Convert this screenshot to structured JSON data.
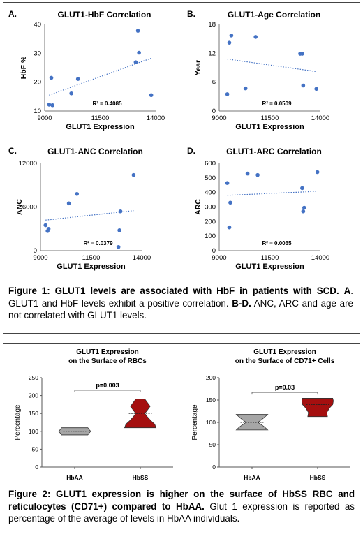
{
  "colors": {
    "scatter_point": "#4472c4",
    "trendline": "#4472c4",
    "hbaa_violin": "#a6a6a6",
    "hbss_violin": "#a50f0f"
  },
  "chart_data": [
    {
      "id": "A",
      "type": "scatter",
      "panel_label": "A.",
      "title": "GLUT1-HbF Correlation",
      "xlabel": "GLUT1 Expression",
      "ylabel": "HbF %",
      "xlim": [
        9000,
        14000
      ],
      "ylim": [
        10,
        40
      ],
      "xticks": [
        9000,
        11500,
        14000
      ],
      "yticks": [
        10,
        20,
        30,
        40
      ],
      "points": [
        [
          9200,
          12.2
        ],
        [
          9300,
          21.5
        ],
        [
          9350,
          12
        ],
        [
          10200,
          16.1
        ],
        [
          10500,
          21.1
        ],
        [
          13100,
          26.9
        ],
        [
          13200,
          37.8
        ],
        [
          13250,
          30.2
        ],
        [
          13800,
          15.5
        ]
      ],
      "trendline": [
        [
          9200,
          15.5
        ],
        [
          13800,
          28.3
        ]
      ],
      "r2_label": "R² = 0.4085"
    },
    {
      "id": "B",
      "type": "scatter",
      "panel_label": "B.",
      "title": "GLUT1-Age Correlation",
      "xlabel": "GLUT1 Expression",
      "ylabel": "Year",
      "xlim": [
        9000,
        14000
      ],
      "ylim": [
        0,
        18
      ],
      "xticks": [
        9000,
        11500,
        14000
      ],
      "yticks": [
        0,
        6,
        12,
        18
      ],
      "points": [
        [
          9400,
          3.5
        ],
        [
          9500,
          14.2
        ],
        [
          9600,
          15.7
        ],
        [
          10300,
          4.7
        ],
        [
          10800,
          15.4
        ],
        [
          13000,
          11.9
        ],
        [
          13100,
          11.9
        ],
        [
          13150,
          5.3
        ],
        [
          13800,
          4.6
        ]
      ],
      "trendline": [
        [
          9400,
          10.8
        ],
        [
          13800,
          8.2
        ]
      ],
      "r2_label": "R² = 0.0509"
    },
    {
      "id": "C",
      "type": "scatter",
      "panel_label": "C.",
      "title": "GLUT1-ANC Correlation",
      "xlabel": "GLUT1 Expression",
      "ylabel": "ANC",
      "xlim": [
        9000,
        14000
      ],
      "ylim": [
        0,
        12000
      ],
      "xticks": [
        9000,
        11500,
        14000
      ],
      "yticks": [
        0,
        6000,
        12000
      ],
      "points": [
        [
          9250,
          3500
        ],
        [
          9350,
          2700
        ],
        [
          9400,
          3000
        ],
        [
          10400,
          6500
        ],
        [
          10800,
          7800
        ],
        [
          12850,
          500
        ],
        [
          12900,
          2800
        ],
        [
          12950,
          5400
        ],
        [
          13600,
          10400
        ]
      ],
      "trendline": [
        [
          9250,
          4200
        ],
        [
          13600,
          5500
        ]
      ],
      "r2_label": "R² = 0.0379"
    },
    {
      "id": "D",
      "type": "scatter",
      "panel_label": "D.",
      "title": "GLUT1-ARC Correlation",
      "xlabel": "GLUT1 Expression",
      "ylabel": "ARC",
      "xlim": [
        9000,
        14000
      ],
      "ylim": [
        0,
        600
      ],
      "xticks": [
        9000,
        11500,
        14000
      ],
      "yticks": [
        0,
        100,
        200,
        300,
        400,
        500,
        600
      ],
      "points": [
        [
          9400,
          465
        ],
        [
          9500,
          160
        ],
        [
          9550,
          330
        ],
        [
          10400,
          530
        ],
        [
          10900,
          520
        ],
        [
          13100,
          430
        ],
        [
          13150,
          270
        ],
        [
          13200,
          295
        ],
        [
          13850,
          540
        ]
      ],
      "trendline": [
        [
          9400,
          380
        ],
        [
          13850,
          408
        ]
      ],
      "r2_label": "R² = 0.0065"
    },
    {
      "id": "E",
      "type": "violin",
      "title_lines": [
        "GLUT1 Expression",
        "on the Surface of RBCs"
      ],
      "ylabel": "Percentage",
      "ylim": [
        0,
        250
      ],
      "yticks": [
        0,
        50,
        100,
        150,
        200,
        250
      ],
      "categories": [
        "HbAA",
        "HbSS"
      ],
      "groups": [
        {
          "name": "HbAA",
          "fill": "#a6a6a6",
          "median": 100,
          "profile": [
            [
              90,
              40
            ],
            [
              95,
              44
            ],
            [
              100,
              49
            ],
            [
              105,
              44
            ],
            [
              110,
              40
            ]
          ]
        },
        {
          "name": "HbSS",
          "fill": "#a50f0f",
          "median": 150,
          "profile": [
            [
              110,
              48
            ],
            [
              120,
              44
            ],
            [
              130,
              32
            ],
            [
              140,
              22
            ],
            [
              150,
              14
            ],
            [
              160,
              22
            ],
            [
              170,
              30
            ],
            [
              180,
              22
            ],
            [
              190,
              14
            ]
          ]
        }
      ],
      "significance": "p=0.003",
      "sig_y": 215
    },
    {
      "id": "F",
      "type": "violin",
      "title_lines": [
        "GLUT1 Expression",
        "on the Surface of CD71+ Cells"
      ],
      "ylabel": "Percentage",
      "ylim": [
        0,
        200
      ],
      "yticks": [
        0,
        50,
        100,
        150,
        200
      ],
      "categories": [
        "HbAA",
        "HbSS"
      ],
      "groups": [
        {
          "name": "HbAA",
          "fill": "#a6a6a6",
          "median": 100,
          "profile": [
            [
              83,
              48
            ],
            [
              90,
              38
            ],
            [
              100,
              18
            ],
            [
              110,
              36
            ],
            [
              118,
              48
            ]
          ]
        },
        {
          "name": "HbSS",
          "fill": "#a50f0f",
          "median": 140,
          "profile": [
            [
              113,
              30
            ],
            [
              122,
              28
            ],
            [
              132,
              36
            ],
            [
              140,
              46
            ],
            [
              148,
              48
            ],
            [
              154,
              46
            ]
          ]
        }
      ],
      "significance": "p=0.03",
      "sig_y": 167
    }
  ],
  "captions": {
    "fig1": {
      "bold": "Figure 1: GLUT1 levels are associated with HbF in patients with SCD.",
      "a_label": "A",
      "a_text": ". GLUT1 and HbF levels exhibit a positive correlation.",
      "bd_label": "B-D.",
      "bd_text": "ANC, ARC and age are not correlated with GLUT1 levels."
    },
    "fig2": {
      "bold": "Figure 2: GLUT1 expression is higher on the surface of HbSS RBC and reticulocytes (CD71+) compared to HbAA.",
      "rest": "Glut 1 expression is reported as percentage of the average of levels in HbAA individuals."
    }
  }
}
